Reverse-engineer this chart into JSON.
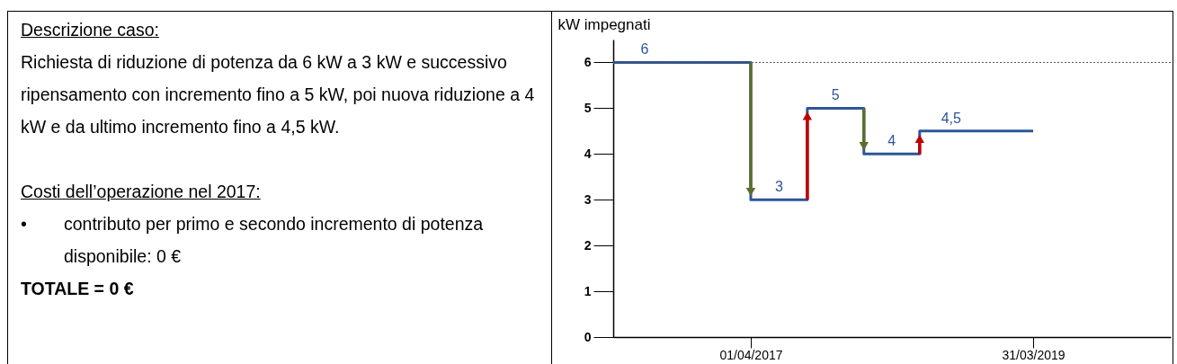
{
  "chart_data": [
    {
      "type": "other",
      "annotations": [
        "Descrizione caso:",
        "Richiesta di riduzione di potenza da 6 kW a 3 kW e successivo ripensamento con incremento fino a 5 kW, poi nuova riduzione a 4 kW e da ultimo incremento fino a 4,5 kW.",
        "Costi dell’operazione nel 2017:",
        "• contributo per primo e secondo incremento di potenza disponibile: 0 €",
        "TOTALE = 0 €"
      ]
    },
    {
      "type": "step",
      "ylabel": "kW impegnati",
      "x": [
        "2016-04-11",
        "2017-04-01",
        "2017-08-25",
        "2018-01-18",
        "2018-06-11",
        "2019-03-31"
      ],
      "series": [
        {
          "color": "#2e5597",
          "values": [
            6,
            3,
            5,
            4,
            4.5,
            4.5
          ],
          "value_labels": [
            "6",
            "3",
            "5",
            "4",
            "4,5",
            null
          ]
        }
      ],
      "xlim": [
        "2016-04-11",
        "2020-03-20"
      ],
      "xticks": [
        {
          "value": "2017-04-01",
          "label": "01/04/2017"
        },
        {
          "value": "2019-03-31",
          "label": "31/03/2019"
        }
      ],
      "ylim": [
        0,
        6.5
      ],
      "yticks": [
        0,
        1,
        2,
        3,
        4,
        5,
        6
      ],
      "ref_lines": [
        {
          "axis": "y",
          "value": 6,
          "color": "#555555",
          "line_style": "dotted"
        }
      ],
      "grid": false
    }
  ]
}
